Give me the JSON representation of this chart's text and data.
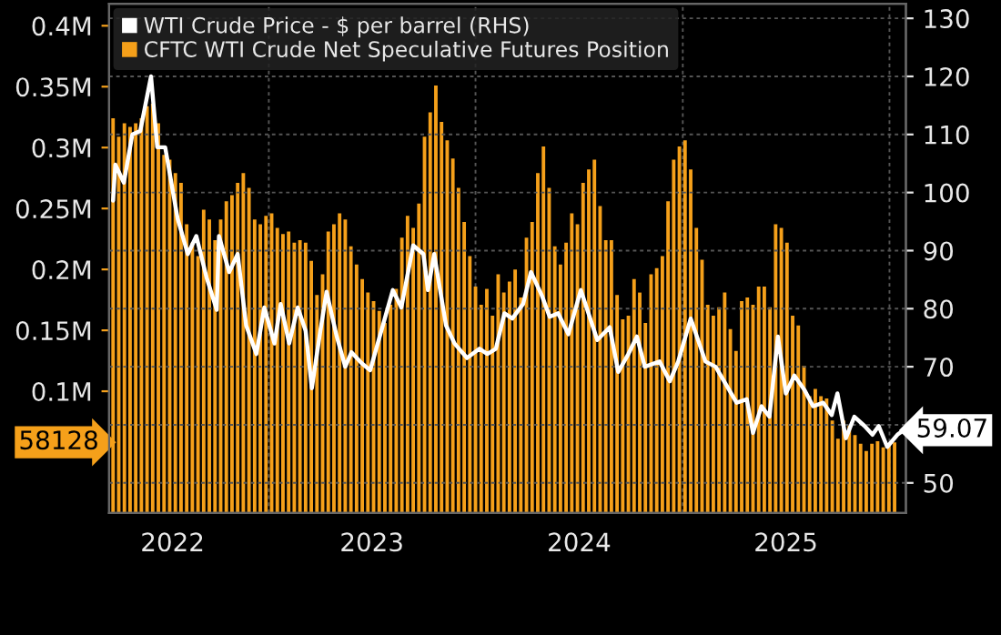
{
  "chart_data": {
    "type": "bar",
    "x": [
      "2022-04-01",
      "2022-04-11",
      "2022-04-21",
      "2022-05-01",
      "2022-05-11",
      "2022-05-21",
      "2022-05-31",
      "2022-06-10",
      "2022-06-20",
      "2022-06-30",
      "2022-07-10",
      "2022-07-20",
      "2022-07-30",
      "2022-08-09",
      "2022-08-19",
      "2022-08-29",
      "2022-09-08",
      "2022-09-18",
      "2022-09-28",
      "2022-10-08",
      "2022-10-18",
      "2022-10-28",
      "2022-11-07",
      "2022-11-17",
      "2022-11-27",
      "2022-12-07",
      "2022-12-17",
      "2022-12-27",
      "2023-01-06",
      "2023-01-16",
      "2023-01-26",
      "2023-02-05",
      "2023-02-15",
      "2023-02-25",
      "2023-03-07",
      "2023-03-17",
      "2023-03-27",
      "2023-04-06",
      "2023-04-16",
      "2023-04-26",
      "2023-05-06",
      "2023-05-16",
      "2023-05-26",
      "2023-06-05",
      "2023-06-15",
      "2023-06-25",
      "2023-07-05",
      "2023-07-15",
      "2023-07-25",
      "2023-08-04",
      "2023-08-14",
      "2023-08-24",
      "2023-09-03",
      "2023-09-13",
      "2023-09-23",
      "2023-10-03",
      "2023-10-13",
      "2023-10-23",
      "2023-11-02",
      "2023-11-12",
      "2023-11-22",
      "2023-12-02",
      "2023-12-12",
      "2023-12-22",
      "2024-01-01",
      "2024-01-11",
      "2024-01-21",
      "2024-01-31",
      "2024-02-10",
      "2024-02-20",
      "2024-03-01",
      "2024-03-11",
      "2024-03-21",
      "2024-03-31",
      "2024-04-10",
      "2024-04-20",
      "2024-04-30",
      "2024-05-10",
      "2024-05-20",
      "2024-05-30",
      "2024-06-09",
      "2024-06-19",
      "2024-06-29",
      "2024-07-09",
      "2024-07-19",
      "2024-07-29",
      "2024-08-08",
      "2024-08-18",
      "2024-08-28",
      "2024-09-07",
      "2024-09-17",
      "2024-09-27",
      "2024-10-07",
      "2024-10-17",
      "2024-10-27",
      "2024-11-06",
      "2024-11-16",
      "2024-11-26",
      "2024-12-06",
      "2024-12-16",
      "2024-12-26",
      "2025-01-05",
      "2025-01-15",
      "2025-01-25",
      "2025-02-04",
      "2025-02-14",
      "2025-02-24",
      "2025-03-06",
      "2025-03-16",
      "2025-03-26",
      "2025-04-05",
      "2025-04-15",
      "2025-04-25",
      "2025-05-05",
      "2025-05-15",
      "2025-05-25",
      "2025-06-04",
      "2025-06-14",
      "2025-06-24",
      "2025-07-04",
      "2025-07-14",
      "2025-07-24",
      "2025-08-03",
      "2025-08-13",
      "2025-08-23",
      "2025-09-02",
      "2025-09-12",
      "2025-09-22",
      "2025-10-02",
      "2025-10-12",
      "2025-10-22",
      "2025-11-01",
      "2025-11-11",
      "2025-11-21",
      "2025-12-01",
      "2025-12-11",
      "2025-12-21",
      "2025-12-31",
      "2026-01-10"
    ],
    "series": [
      {
        "name": "WTI Crude Price - $ per barrel (RHS)",
        "type": "line",
        "axis": "y2",
        "color": "#ffffff",
        "x": [
          "2022-04-01",
          "2022-04-05",
          "2022-04-20",
          "2022-05-05",
          "2022-05-19",
          "2022-06-07",
          "2022-06-18",
          "2022-07-02",
          "2022-07-24",
          "2022-08-11",
          "2022-08-26",
          "2022-09-13",
          "2022-10-01",
          "2022-10-05",
          "2022-10-23",
          "2022-11-07",
          "2022-11-22",
          "2022-12-10",
          "2022-12-24",
          "2023-01-11",
          "2023-01-22",
          "2023-02-06",
          "2023-02-21",
          "2023-03-07",
          "2023-03-18",
          "2023-04-02",
          "2023-04-13",
          "2023-05-01",
          "2023-05-16",
          "2023-05-27",
          "2023-06-14",
          "2023-06-29",
          "2023-07-17",
          "2023-08-08",
          "2023-08-23",
          "2023-09-13",
          "2023-10-01",
          "2023-10-09",
          "2023-10-20",
          "2023-11-10",
          "2023-11-25",
          "2023-12-17",
          "2024-01-08",
          "2024-01-22",
          "2024-02-06",
          "2024-02-21",
          "2024-03-06",
          "2024-03-25",
          "2024-04-08",
          "2024-04-27",
          "2024-05-11",
          "2024-05-26",
          "2024-06-13",
          "2024-07-05",
          "2024-08-03",
          "2024-08-25",
          "2024-09-09",
          "2024-09-27",
          "2024-10-12",
          "2024-10-26",
          "2024-11-21",
          "2024-12-09",
          "2024-12-24",
          "2025-01-15",
          "2025-02-10",
          "2025-02-28",
          "2025-03-15",
          "2025-04-06",
          "2025-04-24",
          "2025-05-05",
          "2025-05-20",
          "2025-06-03",
          "2025-06-18",
          "2025-07-02",
          "2025-07-17",
          "2025-08-04",
          "2025-08-19",
          "2025-09-06",
          "2025-09-21",
          "2025-10-01",
          "2025-10-16",
          "2025-10-31",
          "2025-11-18",
          "2025-12-02",
          "2025-12-13",
          "2025-12-28",
          "2026-01-15",
          "2026-01-26"
        ],
        "values": [
          98.6,
          104.8,
          101.7,
          110,
          110.6,
          120,
          107.8,
          107.8,
          95.5,
          89.4,
          92.5,
          85.4,
          79.8,
          92.5,
          86.3,
          89.4,
          77.1,
          72.2,
          80.2,
          74,
          80.8,
          74,
          80.2,
          76.2,
          66.3,
          76.2,
          82.9,
          75.2,
          70,
          72.5,
          70.6,
          69.4,
          75.6,
          83.2,
          80.2,
          90.9,
          89.4,
          83.2,
          89.4,
          77.1,
          74,
          71.5,
          73.1,
          72.2,
          73.1,
          79.2,
          78.3,
          80.8,
          86.3,
          82.3,
          78.6,
          79.2,
          75.6,
          83.2,
          74.6,
          76.8,
          69.1,
          72.2,
          75.2,
          70,
          70.9,
          67.5,
          70.9,
          78.3,
          70.9,
          70,
          67.5,
          63.8,
          64.4,
          58.6,
          63.2,
          61.4,
          75.2,
          65.4,
          68.5,
          66,
          63.2,
          63.8,
          61.7,
          65.4,
          57.7,
          61.4,
          59.8,
          58.3,
          59.8,
          56.2,
          58.3,
          59.07
        ],
        "value_labels": [
          null,
          null,
          null,
          null,
          null,
          null,
          null,
          null,
          null,
          null,
          null,
          null,
          null,
          null,
          null,
          null,
          null,
          null,
          null,
          null,
          null,
          null,
          null,
          null,
          null,
          null,
          null,
          null,
          null,
          null,
          null,
          null,
          null,
          null,
          null,
          null,
          null,
          null,
          null,
          null,
          null,
          null,
          null,
          null,
          null,
          null,
          null,
          null,
          null,
          null,
          null,
          null,
          null,
          null,
          null,
          null,
          null,
          null,
          null,
          null,
          null,
          null,
          null,
          null,
          null,
          null,
          null,
          null,
          null,
          null,
          null,
          null,
          null,
          null,
          null,
          null,
          null,
          null,
          null,
          null,
          null,
          null,
          null,
          null,
          null,
          null,
          null,
          "59.07"
        ]
      },
      {
        "name": "CFTC WTI Crude Net Speculative Futures Position",
        "color": "#f5a01a",
        "values": [
          324000,
          309000,
          320000,
          317000,
          320000,
          324000,
          334000,
          336000,
          320000,
          294000,
          290000,
          279000,
          271000,
          237000,
          222000,
          211000,
          249000,
          241000,
          224000,
          241000,
          256000,
          261000,
          271000,
          279000,
          267000,
          241000,
          237000,
          244000,
          246000,
          234000,
          229000,
          231000,
          222000,
          224000,
          222000,
          207000,
          179000,
          196000,
          231000,
          237000,
          246000,
          241000,
          219000,
          204000,
          192000,
          181000,
          174000,
          166000,
          156000,
          171000,
          184000,
          226000,
          244000,
          234000,
          254000,
          309000,
          329000,
          351000,
          321000,
          306000,
          291000,
          267000,
          239000,
          211000,
          186000,
          171000,
          184000,
          162000,
          196000,
          181000,
          190000,
          200000,
          177000,
          226000,
          239000,
          279000,
          301000,
          267000,
          219000,
          204000,
          222000,
          246000,
          237000,
          271000,
          282000,
          290000,
          252000,
          224000,
          224000,
          179000,
          159000,
          162000,
          192000,
          181000,
          156000,
          196000,
          201000,
          211000,
          256000,
          290000,
          301000,
          306000,
          282000,
          234000,
          208000,
          171000,
          162000,
          169000,
          181000,
          151000,
          133000,
          174000,
          177000,
          171000,
          186000,
          186000,
          169000,
          237000,
          234000,
          222000,
          162000,
          154000,
          121000,
          96000,
          102000,
          96000,
          94000,
          76000,
          61000,
          76000,
          72000,
          64000,
          57000,
          51000,
          57000,
          59000,
          54000,
          57000,
          58128
        ]
      }
    ],
    "annotations": [
      "58128"
    ],
    "xlim": [
      "2022-03-25",
      "2026-01-30"
    ],
    "xticks": [
      {
        "value": "2022-07-15",
        "label": "2022"
      },
      {
        "value": "2023-01-01",
        "label": null
      },
      {
        "value": "2023-07-02",
        "label": "2023"
      },
      {
        "value": "2024-01-01",
        "label": null
      },
      {
        "value": "2024-07-02",
        "label": "2024"
      },
      {
        "value": "2025-01-01",
        "label": null
      },
      {
        "value": "2025-07-02",
        "label": "2025"
      },
      {
        "value": "2026-01-01",
        "label": null
      }
    ],
    "ylim": [
      0,
      418000
    ],
    "yticks": [
      {
        "value": 100000,
        "label": "0.1M"
      },
      {
        "value": 150000,
        "label": "0.15M"
      },
      {
        "value": 200000,
        "label": "0.2M"
      },
      {
        "value": 250000,
        "label": "0.25M"
      },
      {
        "value": 300000,
        "label": "0.3M"
      },
      {
        "value": 350000,
        "label": "0.35M"
      },
      {
        "value": 400000,
        "label": "0.4M"
      }
    ],
    "y2lim": [
      44.8,
      132.5
    ],
    "y2ticks": [
      50,
      {
        "value": 60,
        "label": null
      },
      70,
      80,
      90,
      100,
      110,
      120,
      130
    ],
    "grid": true,
    "legend": "top left"
  }
}
